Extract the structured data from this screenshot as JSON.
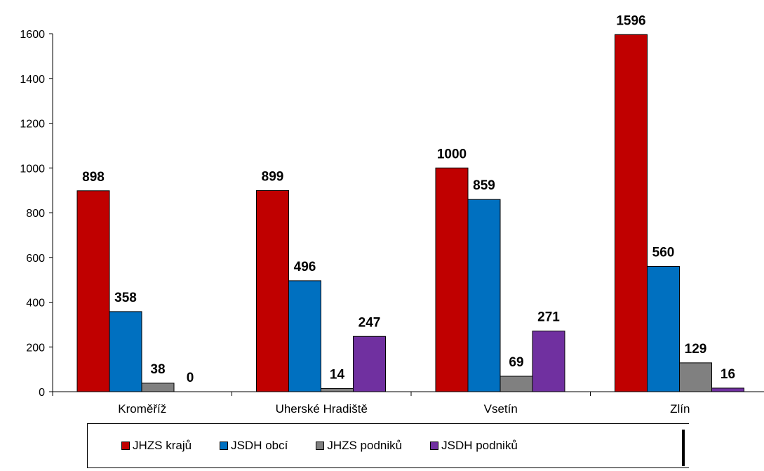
{
  "chart_data": {
    "type": "bar",
    "categories": [
      "Kroměříž",
      "Uherské Hradiště",
      "Vsetín",
      "Zlín"
    ],
    "series": [
      {
        "name": "JHZS krajů",
        "color": "#c00000",
        "values": [
          898,
          899,
          1000,
          1596
        ]
      },
      {
        "name": "JSDH obcí",
        "color": "#0070c0",
        "values": [
          358,
          496,
          859,
          560
        ]
      },
      {
        "name": "JHZS podniků",
        "color": "#808080",
        "values": [
          38,
          14,
          69,
          129
        ]
      },
      {
        "name": "JSDH podniků",
        "color": "#7030a0",
        "values": [
          0,
          247,
          271,
          16
        ]
      }
    ],
    "yticks": [
      "0",
      "200",
      "400",
      "600",
      "800",
      "1000",
      "1200",
      "1400",
      "1600"
    ],
    "ylim": [
      0,
      1600
    ],
    "legend_position": "bottom",
    "grid": false
  }
}
